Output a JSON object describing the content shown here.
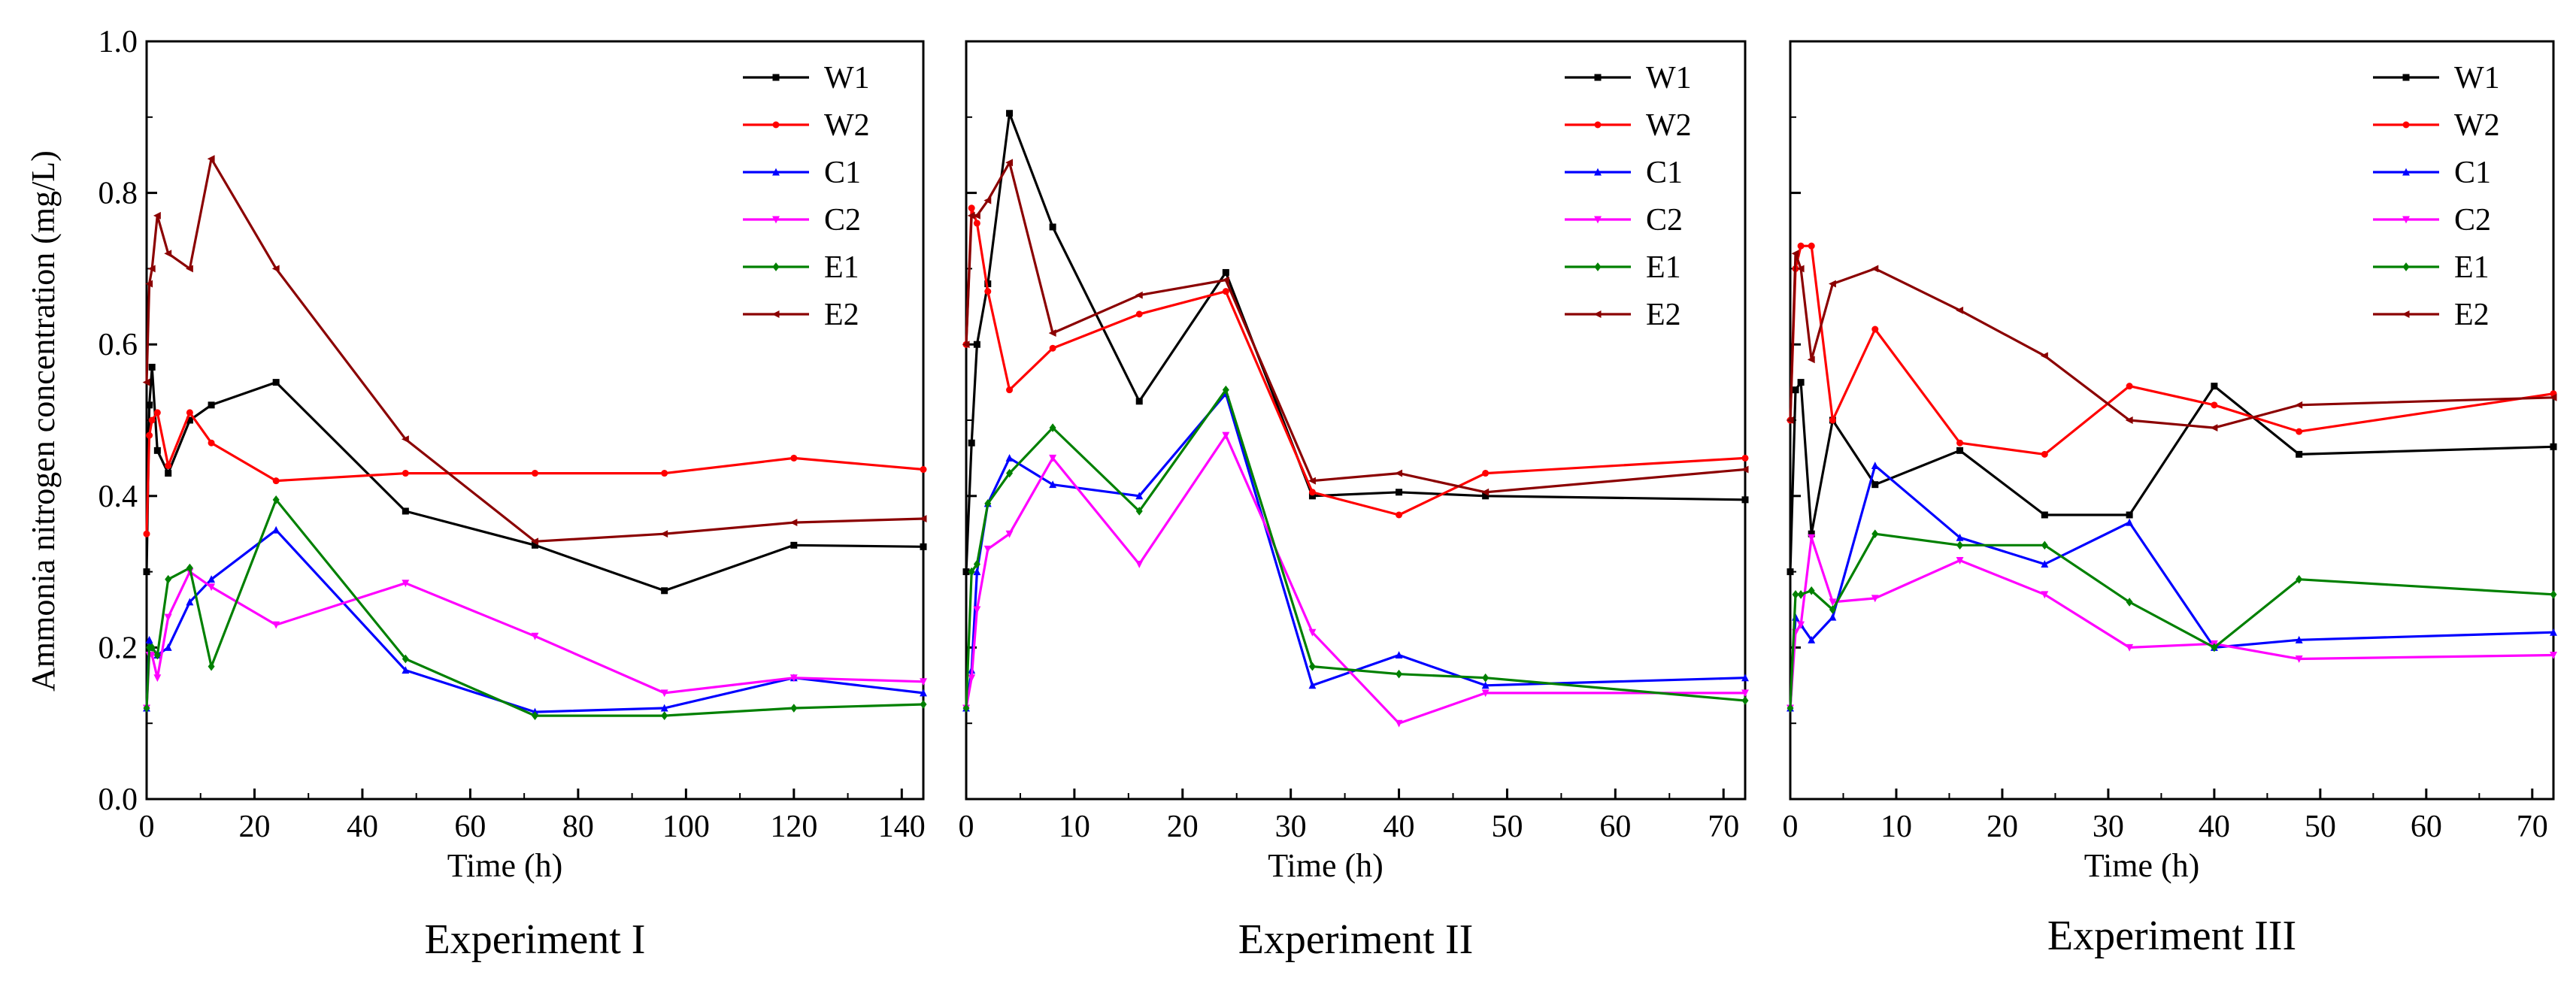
{
  "figure": {
    "ylabel": "Ammonia nitrogen concentration (mg/L)"
  },
  "chart_data": [
    {
      "type": "line",
      "title": "Experiment I",
      "xlabel": "Time (h)",
      "ylabel": "Ammonia nitrogen concentration (mg/L)",
      "xlim": [
        0,
        144
      ],
      "ylim": [
        0,
        1.0
      ],
      "xticks": [
        0,
        20,
        40,
        60,
        80,
        100,
        120,
        140
      ],
      "yticks": [
        0.0,
        0.2,
        0.4,
        0.6,
        0.8,
        1.0
      ],
      "legend_position": "top-right",
      "series": [
        {
          "name": "W1",
          "color": "#000000",
          "marker": "square",
          "x": [
            0,
            0.5,
            1,
            2,
            4,
            8,
            12,
            24,
            48,
            72,
            96,
            120,
            144
          ],
          "y": [
            0.3,
            0.52,
            0.57,
            0.46,
            0.43,
            0.5,
            0.52,
            0.55,
            0.38,
            0.335,
            0.275,
            0.335,
            0.333
          ]
        },
        {
          "name": "W2",
          "color": "#ff0000",
          "marker": "circle",
          "x": [
            0,
            0.5,
            1,
            2,
            4,
            8,
            12,
            24,
            48,
            72,
            96,
            120,
            144
          ],
          "y": [
            0.35,
            0.48,
            0.5,
            0.51,
            0.44,
            0.51,
            0.47,
            0.42,
            0.43,
            0.43,
            0.43,
            0.45,
            0.435
          ]
        },
        {
          "name": "C1",
          "color": "#0000ff",
          "marker": "triangle-up",
          "x": [
            0,
            0.5,
            1,
            2,
            4,
            8,
            12,
            24,
            48,
            72,
            96,
            120,
            144
          ],
          "y": [
            0.12,
            0.21,
            0.2,
            0.19,
            0.2,
            0.26,
            0.29,
            0.355,
            0.17,
            0.115,
            0.12,
            0.16,
            0.14
          ]
        },
        {
          "name": "C2",
          "color": "#ff00ff",
          "marker": "triangle-down",
          "x": [
            0,
            0.5,
            1,
            2,
            4,
            8,
            12,
            24,
            48,
            72,
            96,
            120,
            144
          ],
          "y": [
            0.12,
            0.19,
            0.19,
            0.16,
            0.24,
            0.3,
            0.28,
            0.23,
            0.285,
            0.215,
            0.14,
            0.16,
            0.155
          ]
        },
        {
          "name": "E1",
          "color": "#008000",
          "marker": "diamond",
          "x": [
            0,
            0.5,
            1,
            2,
            4,
            8,
            12,
            24,
            48,
            72,
            96,
            120,
            144
          ],
          "y": [
            0.12,
            0.2,
            0.2,
            0.19,
            0.29,
            0.305,
            0.175,
            0.395,
            0.185,
            0.11,
            0.11,
            0.12,
            0.125
          ]
        },
        {
          "name": "E2",
          "color": "#8b0000",
          "marker": "left-triangle",
          "x": [
            0,
            0.5,
            1,
            2,
            4,
            8,
            12,
            24,
            48,
            72,
            96,
            120,
            144
          ],
          "y": [
            0.55,
            0.68,
            0.7,
            0.77,
            0.72,
            0.7,
            0.845,
            0.7,
            0.475,
            0.34,
            0.35,
            0.365,
            0.37
          ]
        }
      ]
    },
    {
      "type": "line",
      "title": "Experiment II",
      "xlabel": "Time (h)",
      "ylabel": "",
      "xlim": [
        0,
        72
      ],
      "ylim": [
        0,
        1.0
      ],
      "xticks": [
        0,
        10,
        20,
        30,
        40,
        50,
        60,
        70
      ],
      "yticks": [
        0.0,
        0.2,
        0.4,
        0.6,
        0.8,
        1.0
      ],
      "legend_position": "top-right",
      "series": [
        {
          "name": "W1",
          "color": "#000000",
          "marker": "square",
          "x": [
            0,
            0.5,
            1,
            2,
            4,
            8,
            16,
            24,
            32,
            40,
            48,
            72
          ],
          "y": [
            0.3,
            0.47,
            0.6,
            0.68,
            0.905,
            0.755,
            0.525,
            0.695,
            0.4,
            0.405,
            0.4,
            0.395
          ]
        },
        {
          "name": "W2",
          "color": "#ff0000",
          "marker": "circle",
          "x": [
            0,
            0.5,
            1,
            2,
            4,
            8,
            16,
            24,
            32,
            40,
            48,
            72
          ],
          "y": [
            0.6,
            0.78,
            0.76,
            0.67,
            0.54,
            0.595,
            0.64,
            0.67,
            0.405,
            0.375,
            0.43,
            0.45
          ]
        },
        {
          "name": "C1",
          "color": "#0000ff",
          "marker": "triangle-up",
          "x": [
            0,
            0.5,
            1,
            2,
            4,
            8,
            16,
            24,
            32,
            40,
            48,
            72
          ],
          "y": [
            0.12,
            0.17,
            0.3,
            0.39,
            0.45,
            0.415,
            0.4,
            0.535,
            0.15,
            0.19,
            0.15,
            0.16
          ]
        },
        {
          "name": "C2",
          "color": "#ff00ff",
          "marker": "triangle-down",
          "x": [
            0,
            0.5,
            1,
            2,
            4,
            8,
            16,
            24,
            32,
            40,
            48,
            72
          ],
          "y": [
            0.12,
            0.16,
            0.25,
            0.33,
            0.35,
            0.45,
            0.31,
            0.48,
            0.22,
            0.1,
            0.14,
            0.14
          ]
        },
        {
          "name": "E1",
          "color": "#008000",
          "marker": "diamond",
          "x": [
            0,
            0.5,
            1,
            2,
            4,
            8,
            16,
            24,
            32,
            40,
            48,
            72
          ],
          "y": [
            0.12,
            0.3,
            0.31,
            0.39,
            0.43,
            0.49,
            0.38,
            0.54,
            0.175,
            0.165,
            0.16,
            0.13
          ]
        },
        {
          "name": "E2",
          "color": "#8b0000",
          "marker": "left-triangle",
          "x": [
            0,
            0.5,
            1,
            2,
            4,
            8,
            16,
            24,
            32,
            40,
            48,
            72
          ],
          "y": [
            0.6,
            0.77,
            0.77,
            0.79,
            0.84,
            0.615,
            0.665,
            0.685,
            0.42,
            0.43,
            0.405,
            0.435
          ]
        }
      ]
    },
    {
      "type": "line",
      "title": "Experiment III",
      "xlabel": "Time (h)",
      "ylabel": "",
      "xlim": [
        0,
        72
      ],
      "ylim": [
        0,
        1.0
      ],
      "xticks": [
        0,
        10,
        20,
        30,
        40,
        50,
        60,
        70
      ],
      "yticks": [
        0.0,
        0.2,
        0.4,
        0.6,
        0.8,
        1.0
      ],
      "legend_position": "top-right",
      "series": [
        {
          "name": "W1",
          "color": "#000000",
          "marker": "square",
          "x": [
            0,
            0.5,
            1,
            2,
            4,
            8,
            16,
            24,
            32,
            40,
            48,
            72
          ],
          "y": [
            0.3,
            0.54,
            0.55,
            0.35,
            0.5,
            0.415,
            0.46,
            0.375,
            0.375,
            0.545,
            0.455,
            0.465
          ]
        },
        {
          "name": "W2",
          "color": "#ff0000",
          "marker": "circle",
          "x": [
            0,
            0.5,
            1,
            2,
            4,
            8,
            16,
            24,
            32,
            40,
            48,
            72
          ],
          "y": [
            0.5,
            0.7,
            0.73,
            0.73,
            0.5,
            0.62,
            0.47,
            0.455,
            0.545,
            0.52,
            0.485,
            0.535
          ]
        },
        {
          "name": "C1",
          "color": "#0000ff",
          "marker": "triangle-up",
          "x": [
            0,
            0.5,
            1,
            2,
            4,
            8,
            16,
            24,
            32,
            40,
            48,
            72
          ],
          "y": [
            0.12,
            0.24,
            0.23,
            0.21,
            0.24,
            0.44,
            0.345,
            0.31,
            0.365,
            0.2,
            0.21,
            0.22
          ]
        },
        {
          "name": "C2",
          "color": "#ff00ff",
          "marker": "triangle-down",
          "x": [
            0,
            0.5,
            1,
            2,
            4,
            8,
            16,
            24,
            32,
            40,
            48,
            72
          ],
          "y": [
            0.12,
            0.22,
            0.23,
            0.345,
            0.26,
            0.265,
            0.315,
            0.27,
            0.2,
            0.205,
            0.185,
            0.19
          ]
        },
        {
          "name": "E1",
          "color": "#008000",
          "marker": "diamond",
          "x": [
            0,
            0.5,
            1,
            2,
            4,
            8,
            16,
            24,
            32,
            40,
            48,
            72
          ],
          "y": [
            0.12,
            0.27,
            0.27,
            0.275,
            0.25,
            0.35,
            0.335,
            0.335,
            0.26,
            0.2,
            0.29,
            0.27
          ]
        },
        {
          "name": "E2",
          "color": "#8b0000",
          "marker": "left-triangle",
          "x": [
            0,
            0.5,
            1,
            2,
            4,
            8,
            16,
            24,
            32,
            40,
            48,
            72
          ],
          "y": [
            0.5,
            0.72,
            0.7,
            0.58,
            0.68,
            0.7,
            0.645,
            0.585,
            0.5,
            0.49,
            0.52,
            0.53
          ]
        }
      ]
    }
  ]
}
